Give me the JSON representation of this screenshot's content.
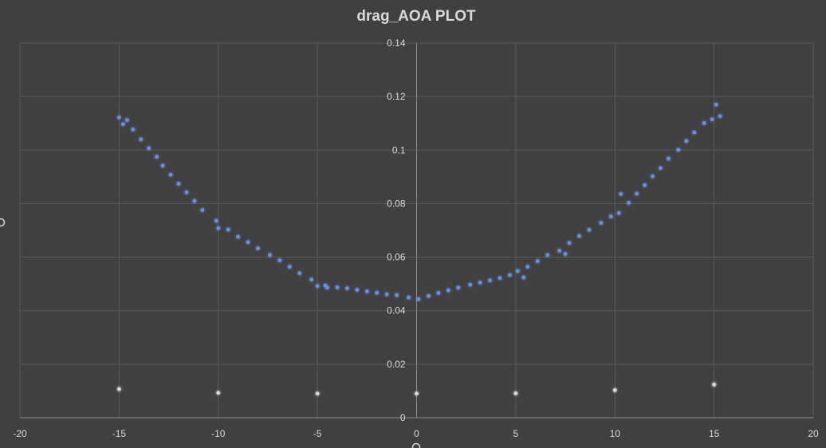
{
  "chart_data": {
    "type": "scatter",
    "title": "drag_AOA PLOT",
    "xlabel": "",
    "ylabel": "",
    "xlim": [
      -20,
      20
    ],
    "ylim": [
      0,
      0.14
    ],
    "x_ticks": [
      -20,
      -15,
      -10,
      -5,
      0,
      5,
      10,
      15,
      20
    ],
    "y_ticks": [
      0,
      0.02,
      0.04,
      0.06,
      0.08,
      0.1,
      0.12,
      0.14
    ],
    "x_tick_labels": [
      "-20",
      "-15",
      "-10",
      "-5",
      "0",
      "5",
      "10",
      "15",
      "20"
    ],
    "y_tick_labels": [
      "0",
      "0.02",
      "0.04",
      "0.06",
      "0.08",
      "0.1",
      "0.12",
      "0.14"
    ],
    "grid": true,
    "legend": "none",
    "series": [
      {
        "color": "#6a8fe0",
        "points": [
          [
            -15.0,
            0.1122
          ],
          [
            -14.8,
            0.1097
          ],
          [
            -14.6,
            0.1112
          ],
          [
            -14.3,
            0.1077
          ],
          [
            -13.9,
            0.104
          ],
          [
            -13.5,
            0.1007
          ],
          [
            -13.1,
            0.0975
          ],
          [
            -12.8,
            0.0942
          ],
          [
            -12.4,
            0.0908
          ],
          [
            -12.0,
            0.0874
          ],
          [
            -11.6,
            0.0842
          ],
          [
            -11.2,
            0.081
          ],
          [
            -10.8,
            0.0776
          ],
          [
            -10.1,
            0.0736
          ],
          [
            -10.0,
            0.0708
          ],
          [
            -9.5,
            0.0703
          ],
          [
            -9.0,
            0.0676
          ],
          [
            -8.5,
            0.0656
          ],
          [
            -8.0,
            0.0633
          ],
          [
            -7.4,
            0.0608
          ],
          [
            -6.9,
            0.0588
          ],
          [
            -6.4,
            0.0564
          ],
          [
            -5.9,
            0.054
          ],
          [
            -5.3,
            0.0516
          ],
          [
            -5.0,
            0.0492
          ],
          [
            -4.6,
            0.0494
          ],
          [
            -4.5,
            0.0486
          ],
          [
            -4.0,
            0.0487
          ],
          [
            -3.5,
            0.0484
          ],
          [
            -3.0,
            0.0478
          ],
          [
            -2.5,
            0.0472
          ],
          [
            -2.0,
            0.0467
          ],
          [
            -1.5,
            0.0461
          ],
          [
            -1.0,
            0.0458
          ],
          [
            -0.4,
            0.0449
          ],
          [
            0.1,
            0.0443
          ],
          [
            0.6,
            0.0455
          ],
          [
            1.1,
            0.0466
          ],
          [
            1.6,
            0.0476
          ],
          [
            2.1,
            0.0486
          ],
          [
            2.7,
            0.0497
          ],
          [
            3.2,
            0.0505
          ],
          [
            3.7,
            0.0513
          ],
          [
            4.2,
            0.0522
          ],
          [
            4.7,
            0.0533
          ],
          [
            5.1,
            0.0548
          ],
          [
            5.4,
            0.0524
          ],
          [
            5.6,
            0.0564
          ],
          [
            6.1,
            0.0585
          ],
          [
            6.6,
            0.0608
          ],
          [
            7.2,
            0.0624
          ],
          [
            7.5,
            0.0612
          ],
          [
            7.7,
            0.0653
          ],
          [
            8.2,
            0.0679
          ],
          [
            8.7,
            0.0702
          ],
          [
            9.3,
            0.0728
          ],
          [
            9.8,
            0.0752
          ],
          [
            10.2,
            0.0765
          ],
          [
            10.3,
            0.0836
          ],
          [
            10.7,
            0.0803
          ],
          [
            11.1,
            0.0837
          ],
          [
            11.5,
            0.0869
          ],
          [
            11.9,
            0.0902
          ],
          [
            12.3,
            0.0933
          ],
          [
            12.7,
            0.0968
          ],
          [
            13.2,
            0.1001
          ],
          [
            13.6,
            0.1034
          ],
          [
            14.0,
            0.1066
          ],
          [
            14.5,
            0.1101
          ],
          [
            14.9,
            0.1115
          ],
          [
            15.1,
            0.117
          ],
          [
            15.3,
            0.1127
          ]
        ]
      },
      {
        "color": "#d9d9d9",
        "points": [
          [
            -15.0,
            0.0107
          ],
          [
            -10.0,
            0.0093
          ],
          [
            -5.0,
            0.009
          ],
          [
            0.0,
            0.009
          ],
          [
            5.0,
            0.0091
          ],
          [
            10.0,
            0.0103
          ],
          [
            15.0,
            0.0124
          ]
        ]
      }
    ]
  }
}
